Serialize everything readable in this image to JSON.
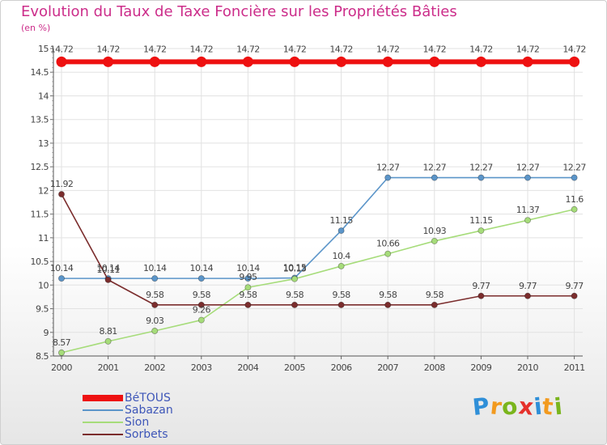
{
  "header": {
    "title": "Evolution du Taux de Taxe Foncière sur les Propriétés Bâties",
    "unit": "(en %)"
  },
  "logo": {
    "letters": [
      "P",
      "r",
      "o",
      "x",
      "i",
      "t",
      "i"
    ],
    "colors": [
      "#2f8fd8",
      "#f29a1f",
      "#7ab51d",
      "#e5312b",
      "#2f8fd8",
      "#f29a1f",
      "#7ab51d"
    ]
  },
  "chart_data": {
    "type": "line",
    "title": "Evolution du Taux de Taxe Foncière sur les Propriétés Bâties",
    "ylabel": "(en %)",
    "xlabel": "",
    "categories": [
      "2000",
      "2001",
      "2002",
      "2003",
      "2004",
      "2005",
      "2006",
      "2007",
      "2008",
      "2009",
      "2010",
      "2011"
    ],
    "ylim": [
      8.5,
      15
    ],
    "yticks": [
      8.5,
      9,
      9.5,
      10,
      10.5,
      11,
      11.5,
      12,
      12.5,
      13,
      13.5,
      14,
      14.5,
      15
    ],
    "ytick_labels": [
      "8.5",
      "9",
      "9.5",
      "10",
      "10.5",
      "11",
      "11.5",
      "12",
      "12.5",
      "13",
      "13.5",
      "14",
      "14.5",
      "15"
    ],
    "grid": true,
    "legend_position": "bottom-left",
    "series": [
      {
        "name": "BéTOUS",
        "color": "#ee1111",
        "values": [
          14.72,
          14.72,
          14.72,
          14.72,
          14.72,
          14.72,
          14.72,
          14.72,
          14.72,
          14.72,
          14.72,
          14.72
        ],
        "labels": [
          "14.72",
          "14.72",
          "14.72",
          "14.72",
          "14.72",
          "14.72",
          "14.72",
          "14.72",
          "14.72",
          "14.72",
          "14.72",
          "14.72"
        ]
      },
      {
        "name": "Sabazan",
        "color": "#5b95c9",
        "values": [
          10.14,
          10.14,
          10.14,
          10.14,
          10.14,
          10.15,
          11.15,
          12.27,
          12.27,
          12.27,
          12.27,
          12.27
        ],
        "labels": [
          "10.14",
          "10.14",
          "10.14",
          "10.14",
          "10.14",
          "10.15",
          "11.15",
          "12.27",
          "12.27",
          "12.27",
          "12.27",
          "12.27"
        ]
      },
      {
        "name": "Sion",
        "color": "#a6dc7a",
        "values": [
          8.57,
          8.81,
          9.03,
          9.26,
          9.95,
          10.13,
          10.4,
          10.66,
          10.93,
          11.15,
          11.37,
          11.6
        ],
        "labels": [
          "8.57",
          "8.81",
          "9.03",
          "9.26",
          "9.95",
          "10.13",
          "10.4",
          "10.66",
          "10.93",
          "11.15",
          "11.37",
          "11.6"
        ]
      },
      {
        "name": "Sorbets",
        "color": "#7b2d2d",
        "values": [
          11.92,
          10.11,
          9.58,
          9.58,
          9.58,
          9.58,
          9.58,
          9.58,
          9.58,
          9.77,
          9.77,
          9.77
        ],
        "labels": [
          "11.92",
          "10.11",
          "9.58",
          "9.58",
          "9.58",
          "9.58",
          "9.58",
          "9.58",
          "9.58",
          "9.77",
          "9.77",
          "9.77"
        ]
      }
    ]
  }
}
